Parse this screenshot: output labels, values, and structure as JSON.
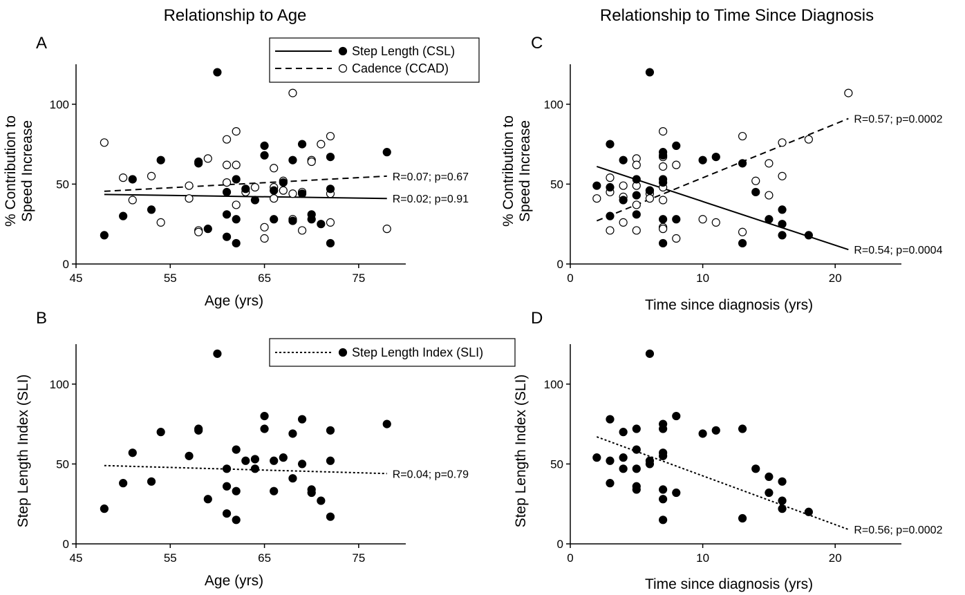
{
  "column_titles": {
    "left": "Relationship to Age",
    "right": "Relationship to Time Since Diagnosis"
  },
  "legend_top": {
    "items": [
      {
        "label": "Step Length (CSL)",
        "line": "solid",
        "marker": "filled"
      },
      {
        "label": "Cadence (CCAD)",
        "line": "dashed",
        "marker": "open"
      }
    ]
  },
  "legend_bottom": {
    "items": [
      {
        "label": "Step Length Index (SLI)",
        "line": "dotted",
        "marker": "filled"
      }
    ]
  },
  "chart_data": [
    {
      "id": "A",
      "letter": "A",
      "type": "scatter",
      "xlabel": "Age (yrs)",
      "ylabel": [
        "% Contribution to",
        "Speed Increase"
      ],
      "xlim": [
        45,
        80
      ],
      "ylim": [
        0,
        125
      ],
      "xticks": [
        45,
        55,
        65,
        75
      ],
      "yticks": [
        0,
        50,
        100
      ],
      "series": [
        {
          "name": "Step Length (CSL)",
          "marker": "filled",
          "points": [
            [
              48,
              18
            ],
            [
              50,
              30
            ],
            [
              51,
              53
            ],
            [
              53,
              34
            ],
            [
              54,
              65
            ],
            [
              58,
              63
            ],
            [
              58,
              64
            ],
            [
              59,
              22
            ],
            [
              60,
              120
            ],
            [
              61,
              17
            ],
            [
              61,
              31
            ],
            [
              61,
              45
            ],
            [
              62,
              13
            ],
            [
              62,
              28
            ],
            [
              62,
              53
            ],
            [
              63,
              47
            ],
            [
              64,
              40
            ],
            [
              65,
              74
            ],
            [
              65,
              68
            ],
            [
              66,
              46
            ],
            [
              66,
              28
            ],
            [
              67,
              51
            ],
            [
              68,
              27
            ],
            [
              68,
              65
            ],
            [
              69,
              44
            ],
            [
              69,
              75
            ],
            [
              70,
              31
            ],
            [
              70,
              28
            ],
            [
              71,
              25
            ],
            [
              72,
              67
            ],
            [
              72,
              47
            ],
            [
              72,
              13
            ],
            [
              78,
              70
            ]
          ]
        },
        {
          "name": "Cadence (CCAD)",
          "marker": "open",
          "points": [
            [
              48,
              76
            ],
            [
              50,
              54
            ],
            [
              51,
              40
            ],
            [
              53,
              55
            ],
            [
              54,
              26
            ],
            [
              57,
              41
            ],
            [
              57,
              49
            ],
            [
              58,
              21
            ],
            [
              58,
              20
            ],
            [
              59,
              66
            ],
            [
              61,
              78
            ],
            [
              61,
              62
            ],
            [
              61,
              51
            ],
            [
              62,
              83
            ],
            [
              62,
              62
            ],
            [
              62,
              37
            ],
            [
              63,
              45
            ],
            [
              64,
              48
            ],
            [
              65,
              16
            ],
            [
              65,
              23
            ],
            [
              66,
              60
            ],
            [
              66,
              48
            ],
            [
              66,
              41
            ],
            [
              67,
              46
            ],
            [
              67,
              52
            ],
            [
              68,
              107
            ],
            [
              68,
              28
            ],
            [
              68,
              44
            ],
            [
              69,
              21
            ],
            [
              69,
              45
            ],
            [
              70,
              65
            ],
            [
              70,
              64
            ],
            [
              71,
              75
            ],
            [
              72,
              80
            ],
            [
              72,
              44
            ],
            [
              72,
              26
            ],
            [
              78,
              22
            ]
          ]
        }
      ],
      "fits": [
        {
          "style": "solid",
          "x": [
            48,
            78
          ],
          "y": [
            43.5,
            41
          ],
          "label": "R=0.02; p=0.91"
        },
        {
          "style": "dashed",
          "x": [
            48,
            78
          ],
          "y": [
            45.5,
            55
          ],
          "label": "R=0.07; p=0.67"
        }
      ]
    },
    {
      "id": "B",
      "letter": "B",
      "type": "scatter",
      "xlabel": "Age (yrs)",
      "ylabel": [
        "Step Length Index (SLI)"
      ],
      "xlim": [
        45,
        80
      ],
      "ylim": [
        0,
        125
      ],
      "xticks": [
        45,
        55,
        65,
        75
      ],
      "yticks": [
        0,
        50,
        100
      ],
      "series": [
        {
          "name": "Step Length Index (SLI)",
          "marker": "filled",
          "points": [
            [
              48,
              22
            ],
            [
              50,
              38
            ],
            [
              51,
              57
            ],
            [
              53,
              39
            ],
            [
              54,
              70
            ],
            [
              57,
              55
            ],
            [
              58,
              72
            ],
            [
              58,
              71
            ],
            [
              59,
              28
            ],
            [
              60,
              119
            ],
            [
              61,
              19
            ],
            [
              61,
              36
            ],
            [
              61,
              47
            ],
            [
              62,
              15
            ],
            [
              62,
              33
            ],
            [
              62,
              59
            ],
            [
              63,
              52
            ],
            [
              64,
              53
            ],
            [
              64,
              47
            ],
            [
              65,
              80
            ],
            [
              65,
              72
            ],
            [
              66,
              52
            ],
            [
              66,
              33
            ],
            [
              67,
              54
            ],
            [
              68,
              41
            ],
            [
              68,
              69
            ],
            [
              69,
              50
            ],
            [
              69,
              78
            ],
            [
              70,
              34
            ],
            [
              70,
              32
            ],
            [
              71,
              27
            ],
            [
              72,
              71
            ],
            [
              72,
              52
            ],
            [
              72,
              17
            ],
            [
              78,
              75
            ]
          ]
        }
      ],
      "fits": [
        {
          "style": "dotted",
          "x": [
            48,
            78
          ],
          "y": [
            49,
            44
          ],
          "label": "R=0.04; p=0.79"
        }
      ]
    },
    {
      "id": "C",
      "letter": "C",
      "type": "scatter",
      "xlabel": "Time since diagnosis (yrs)",
      "ylabel": [
        "% Contribution to",
        "Speed Increase"
      ],
      "xlim": [
        0,
        25
      ],
      "ylim": [
        0,
        125
      ],
      "xticks": [
        0,
        10,
        20
      ],
      "yticks": [
        0,
        50,
        100
      ],
      "series": [
        {
          "name": "Step Length (CSL)",
          "marker": "filled",
          "points": [
            [
              2,
              49
            ],
            [
              3,
              75
            ],
            [
              3,
              48
            ],
            [
              3,
              30
            ],
            [
              4,
              65
            ],
            [
              4,
              40
            ],
            [
              5,
              53
            ],
            [
              5,
              43
            ],
            [
              5,
              31
            ],
            [
              6,
              120
            ],
            [
              6,
              46
            ],
            [
              7,
              70
            ],
            [
              7,
              68
            ],
            [
              7,
              53
            ],
            [
              7,
              51
            ],
            [
              7,
              28
            ],
            [
              7,
              13
            ],
            [
              8,
              74
            ],
            [
              8,
              28
            ],
            [
              10,
              65
            ],
            [
              11,
              67
            ],
            [
              13,
              63
            ],
            [
              13,
              13
            ],
            [
              14,
              45
            ],
            [
              15,
              28
            ],
            [
              16,
              34
            ],
            [
              16,
              25
            ],
            [
              16,
              18
            ],
            [
              18,
              18
            ]
          ]
        },
        {
          "name": "Cadence (CCAD)",
          "marker": "open",
          "points": [
            [
              2,
              41
            ],
            [
              3,
              54
            ],
            [
              3,
              45
            ],
            [
              3,
              21
            ],
            [
              4,
              49
            ],
            [
              4,
              42
            ],
            [
              4,
              26
            ],
            [
              5,
              66
            ],
            [
              5,
              62
            ],
            [
              5,
              49
            ],
            [
              5,
              37
            ],
            [
              5,
              21
            ],
            [
              6,
              46
            ],
            [
              6,
              44
            ],
            [
              6,
              41
            ],
            [
              7,
              83
            ],
            [
              7,
              67
            ],
            [
              7,
              61
            ],
            [
              7,
              48
            ],
            [
              7,
              40
            ],
            [
              7,
              23
            ],
            [
              7,
              22
            ],
            [
              8,
              62
            ],
            [
              8,
              16
            ],
            [
              10,
              28
            ],
            [
              11,
              26
            ],
            [
              13,
              80
            ],
            [
              13,
              20
            ],
            [
              14,
              52
            ],
            [
              15,
              63
            ],
            [
              15,
              43
            ],
            [
              16,
              76
            ],
            [
              16,
              55
            ],
            [
              18,
              78
            ],
            [
              21,
              107
            ]
          ]
        }
      ],
      "fits": [
        {
          "style": "solid",
          "x": [
            2,
            21
          ],
          "y": [
            61,
            9
          ],
          "label": "R=0.54; p=0.0004"
        },
        {
          "style": "dashed",
          "x": [
            2,
            21
          ],
          "y": [
            27,
            91
          ],
          "label": "R=0.57; p=0.0002"
        }
      ]
    },
    {
      "id": "D",
      "letter": "D",
      "type": "scatter",
      "xlabel": "Time since diagnosis (yrs)",
      "ylabel": [
        "Step Length Index (SLI)"
      ],
      "xlim": [
        0,
        25
      ],
      "ylim": [
        0,
        125
      ],
      "xticks": [
        0,
        10,
        20
      ],
      "yticks": [
        0,
        50,
        100
      ],
      "series": [
        {
          "name": "Step Length Index (SLI)",
          "marker": "filled",
          "points": [
            [
              2,
              54
            ],
            [
              3,
              78
            ],
            [
              3,
              52
            ],
            [
              3,
              38
            ],
            [
              4,
              70
            ],
            [
              4,
              54
            ],
            [
              4,
              47
            ],
            [
              5,
              72
            ],
            [
              5,
              59
            ],
            [
              5,
              47
            ],
            [
              5,
              36
            ],
            [
              5,
              34
            ],
            [
              6,
              119
            ],
            [
              6,
              52
            ],
            [
              6,
              50
            ],
            [
              7,
              75
            ],
            [
              7,
              72
            ],
            [
              7,
              57
            ],
            [
              7,
              55
            ],
            [
              7,
              34
            ],
            [
              7,
              28
            ],
            [
              7,
              15
            ],
            [
              8,
              80
            ],
            [
              8,
              32
            ],
            [
              10,
              69
            ],
            [
              11,
              71
            ],
            [
              13,
              72
            ],
            [
              13,
              16
            ],
            [
              14,
              47
            ],
            [
              15,
              42
            ],
            [
              15,
              32
            ],
            [
              16,
              39
            ],
            [
              16,
              27
            ],
            [
              16,
              22
            ],
            [
              18,
              20
            ]
          ]
        }
      ],
      "fits": [
        {
          "style": "dotted",
          "x": [
            2,
            21
          ],
          "y": [
            67,
            9
          ],
          "label": "R=0.56; p=0.0002"
        }
      ]
    }
  ]
}
